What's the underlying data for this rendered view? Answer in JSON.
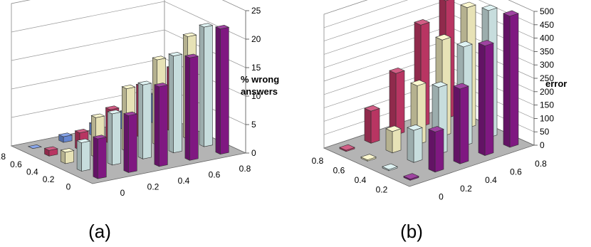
{
  "chart_data": [
    {
      "panel": "a",
      "type": "bar",
      "bar_style": "3d-column",
      "caption": "(a)",
      "zlabel": [
        "% wrong",
        "answers"
      ],
      "zlim": [
        0,
        25
      ],
      "zticks": [
        "0",
        "5",
        "10",
        "15",
        "20",
        "25"
      ],
      "x_ticks": [
        "0",
        "0.2",
        "0.4",
        "0.6",
        "0.8"
      ],
      "y_ticks": [
        "0",
        "0.2",
        "0.4",
        "0.6",
        "0.8"
      ],
      "series_colors": [
        "#8a1a8c",
        "#d8f0f0",
        "#fbf6c6",
        "#c83a6a",
        "#6f93e5"
      ],
      "values": [
        [
          7,
          10,
          14,
          18,
          22
        ],
        [
          5,
          9,
          13,
          17,
          21
        ],
        [
          2,
          7,
          11,
          15,
          18
        ],
        [
          1,
          3,
          6,
          9,
          11
        ],
        [
          0,
          1,
          2,
          3,
          5
        ]
      ],
      "grid": true
    },
    {
      "panel": "b",
      "type": "bar",
      "bar_style": "3d-column",
      "caption": "(b)",
      "zlabel": [
        "error"
      ],
      "zlim": [
        0,
        500
      ],
      "zticks": [
        "0",
        "50",
        "100",
        "150",
        "200",
        "250",
        "300",
        "350",
        "400",
        "450",
        "500"
      ],
      "x_ticks": [
        "0",
        "0.2",
        "0.4",
        "0.6",
        "0.8"
      ],
      "y_ticks": [
        "0.2",
        "0.4",
        "0.6",
        "0.8"
      ],
      "series_colors": [
        "#8a1a8c",
        "#d8f0f0",
        "#fbf6c6",
        "#c83a6a"
      ],
      "values": [
        [
          5,
          150,
          280,
          410,
          490
        ],
        [
          5,
          120,
          250,
          370,
          475
        ],
        [
          5,
          80,
          220,
          360,
          450
        ],
        [
          5,
          120,
          230,
          380,
          440
        ]
      ],
      "grid": true
    }
  ]
}
